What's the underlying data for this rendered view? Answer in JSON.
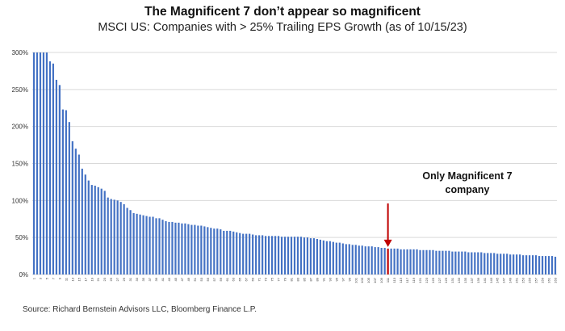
{
  "header": {
    "title": "The Magnificent 7 don’t appear so magnificent",
    "subtitle": "MSCI US: Companies with > 25% Trailing EPS Growth (as of 10/15/23)"
  },
  "footer": {
    "source": "Source: Richard Bernstein Advisors LLC, Bloomberg Finance L.P."
  },
  "annotation": {
    "line1": "Only Magnificent 7",
    "line2": "company",
    "target_index": 110,
    "label_color": "#111111",
    "arrow_color": "#c00000"
  },
  "colors": {
    "bar": "#4472c4",
    "highlight": "#c00000",
    "grid": "#d9d9d9",
    "axis_text": "#333333"
  },
  "chart_data": {
    "type": "bar",
    "title": "The Magnificent 7 don’t appear so magnificent",
    "subtitle": "MSCI US: Companies with > 25% Trailing EPS Growth (as of 10/15/23)",
    "xlabel": "",
    "ylabel": "",
    "ylim": [
      0,
      300
    ],
    "yticks": [
      "0%",
      "50%",
      "100%",
      "150%",
      "200%",
      "250%",
      "300%"
    ],
    "grid": true,
    "highlight_index": 110,
    "xticks_every": 2,
    "values": [
      300,
      300,
      300,
      300,
      300,
      288,
      285,
      263,
      256,
      223,
      222,
      206,
      180,
      170,
      162,
      143,
      135,
      127,
      121,
      120,
      118,
      116,
      113,
      104,
      102,
      101,
      100,
      98,
      95,
      90,
      87,
      83,
      82,
      81,
      80,
      79,
      78,
      78,
      76,
      76,
      74,
      72,
      71,
      71,
      70,
      70,
      69,
      69,
      68,
      67,
      67,
      66,
      66,
      65,
      64,
      63,
      62,
      62,
      61,
      59,
      59,
      59,
      58,
      57,
      56,
      55,
      55,
      55,
      54,
      53,
      53,
      53,
      52,
      52,
      52,
      52,
      52,
      51,
      51,
      51,
      51,
      51,
      51,
      51,
      50,
      50,
      49,
      49,
      48,
      47,
      46,
      45,
      45,
      44,
      43,
      43,
      42,
      41,
      41,
      40,
      40,
      39,
      39,
      38,
      38,
      38,
      37,
      37,
      36,
      36,
      35,
      35,
      35,
      35,
      34,
      34,
      34,
      34,
      34,
      34,
      33,
      33,
      33,
      33,
      33,
      32,
      32,
      32,
      32,
      32,
      31,
      31,
      31,
      31,
      31,
      30,
      30,
      30,
      30,
      30,
      29,
      29,
      29,
      29,
      28,
      28,
      28,
      28,
      27,
      27,
      27,
      27,
      26,
      26,
      26,
      26,
      26,
      25,
      25,
      25,
      25,
      25,
      24
    ]
  }
}
